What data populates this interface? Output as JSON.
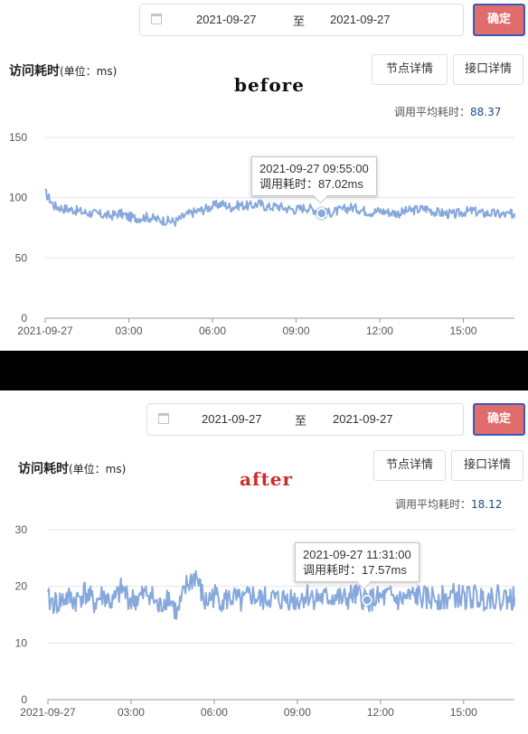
{
  "panels": [
    {
      "key": "before",
      "date_start": "2021-09-27",
      "date_sep": "至",
      "date_end": "2021-09-27",
      "confirm_label": "确定",
      "title": "访问耗时",
      "title_unit": "(单位：ms)",
      "tag": "before",
      "tag_color": "#111111",
      "node_detail_label": "节点详情",
      "api_detail_label": "接口详情",
      "avg_label": "调用平均耗时：",
      "avg_value": "88.37",
      "tooltip_time": "2021-09-27 09:55:00",
      "tooltip_label": "调用耗时：",
      "tooltip_value": "87.02ms"
    },
    {
      "key": "after",
      "date_start": "2021-09-27",
      "date_sep": "至",
      "date_end": "2021-09-27",
      "confirm_label": "确定",
      "title": "访问耗时",
      "title_unit": "(单位：ms)",
      "tag": "after",
      "tag_color": "#cc2a2a",
      "node_detail_label": "节点详情",
      "api_detail_label": "接口详情",
      "avg_label": "调用平均耗时：",
      "avg_value": "18.12",
      "tooltip_time": "2021-09-27 11:31:00",
      "tooltip_label": "调用耗时：",
      "tooltip_value": "17.57ms"
    }
  ],
  "chart_data": [
    {
      "type": "line",
      "title": "",
      "xlabel": "",
      "ylabel": "",
      "series_color": "#86a8dc",
      "ylim": [
        0,
        150
      ],
      "yticks": [
        0,
        50,
        100,
        150
      ],
      "xlim": [
        "00:00",
        "16:50"
      ],
      "xticks": [
        "2021-09-27",
        "03:00",
        "06:00",
        "09:00",
        "12:00",
        "15:00"
      ],
      "grid": true,
      "highlight": {
        "x": "09:55",
        "y": 87.02
      },
      "x": [
        "00:00",
        "00:20",
        "00:40",
        "01:00",
        "01:20",
        "01:40",
        "02:00",
        "02:20",
        "02:40",
        "03:00",
        "03:20",
        "03:40",
        "04:00",
        "04:20",
        "04:40",
        "05:00",
        "05:20",
        "05:40",
        "06:00",
        "06:20",
        "06:40",
        "07:00",
        "07:20",
        "07:40",
        "08:00",
        "08:20",
        "08:40",
        "09:00",
        "09:20",
        "09:40",
        "10:00",
        "10:20",
        "10:40",
        "11:00",
        "11:20",
        "11:40",
        "12:00",
        "12:20",
        "12:40",
        "13:00",
        "13:20",
        "13:40",
        "14:00",
        "14:20",
        "14:40",
        "15:00",
        "15:20",
        "15:40",
        "16:00",
        "16:20",
        "16:40",
        "16:50"
      ],
      "y": [
        104,
        93,
        91,
        90,
        88,
        87,
        86,
        85,
        87,
        84,
        83,
        84,
        82,
        81,
        80,
        85,
        88,
        90,
        93,
        95,
        92,
        94,
        93,
        95,
        92,
        93,
        91,
        90,
        92,
        90,
        87,
        88,
        90,
        92,
        90,
        88,
        89,
        88,
        87,
        89,
        90,
        91,
        88,
        87,
        86,
        88,
        89,
        87,
        87,
        86,
        86,
        87
      ]
    },
    {
      "type": "line",
      "title": "",
      "xlabel": "",
      "ylabel": "",
      "series_color": "#86a8dc",
      "ylim": [
        0,
        30
      ],
      "yticks": [
        0,
        10,
        20,
        30
      ],
      "xlim": [
        "00:00",
        "16:50"
      ],
      "xticks": [
        "2021-09-27",
        "03:00",
        "06:00",
        "09:00",
        "12:00",
        "15:00"
      ],
      "grid": true,
      "highlight": {
        "x": "11:31",
        "y": 17.57
      },
      "x": [
        "00:00",
        "00:20",
        "00:40",
        "01:00",
        "01:20",
        "01:40",
        "02:00",
        "02:20",
        "02:40",
        "03:00",
        "03:20",
        "03:40",
        "04:00",
        "04:20",
        "04:40",
        "05:00",
        "05:20",
        "05:40",
        "06:00",
        "06:20",
        "06:40",
        "07:00",
        "07:20",
        "07:40",
        "08:00",
        "08:20",
        "08:40",
        "09:00",
        "09:20",
        "09:40",
        "10:00",
        "10:20",
        "10:40",
        "11:00",
        "11:20",
        "11:40",
        "12:00",
        "12:20",
        "12:40",
        "13:00",
        "13:20",
        "13:40",
        "14:00",
        "14:20",
        "14:40",
        "15:00",
        "15:20",
        "15:40",
        "16:00",
        "16:20",
        "16:40",
        "16:50"
      ],
      "y": [
        17.5,
        17,
        18,
        17.5,
        19,
        17,
        18.5,
        17,
        19.5,
        17.5,
        18,
        19,
        16,
        18.5,
        15,
        20,
        22,
        17,
        18.5,
        17.5,
        18,
        17,
        18.5,
        17.5,
        18,
        17.5,
        18,
        17.5,
        18.5,
        18,
        17.8,
        18.2,
        17.5,
        18.3,
        18,
        17.6,
        17.8,
        18.2,
        17.5,
        18,
        18.3,
        17.7,
        18.2,
        17.8,
        18.4,
        18,
        18.2,
        17.8,
        18.3,
        18,
        17.9,
        18
      ]
    }
  ]
}
